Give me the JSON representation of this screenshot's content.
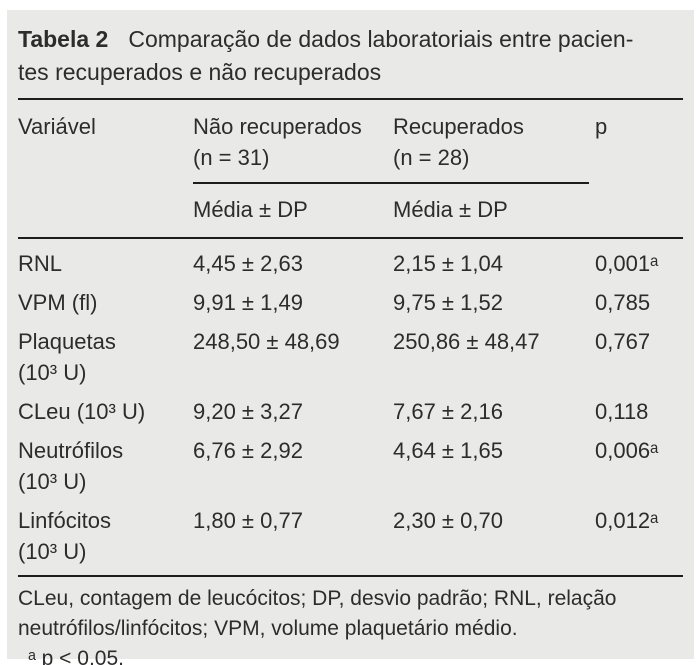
{
  "title": {
    "label": "Tabela 2",
    "line1": "Comparação de dados laboratoriais entre pacien-",
    "line2": "tes recuperados e não recuperados"
  },
  "table": {
    "columns": {
      "variable": "Variável",
      "group1_line1": "Não recuperados",
      "group1_line2": "(n = 31)",
      "group2_line1": "Recuperados",
      "group2_line2": "(n = 28)",
      "p": "p",
      "subheader": "Média ± DP"
    },
    "rows": [
      {
        "variable": "RNL",
        "unit": "",
        "not_recovered": "4,45 ± 2,63",
        "recovered": "2,15 ± 1,04",
        "p": "0,001ᵃ"
      },
      {
        "variable": "VPM (fl)",
        "unit": "",
        "not_recovered": "9,91 ± 1,49",
        "recovered": "9,75 ± 1,52",
        "p": "0,785"
      },
      {
        "variable": "Plaquetas",
        "unit": "(10³ U)",
        "not_recovered": "248,50 ± 48,69",
        "recovered": "250,86 ± 48,47",
        "p": "0,767"
      },
      {
        "variable": "CLeu (10³ U)",
        "unit": "",
        "not_recovered": "9,20 ± 3,27",
        "recovered": "7,67 ± 2,16",
        "p": "0,118"
      },
      {
        "variable": "Neutrófilos",
        "unit": "(10³ U)",
        "not_recovered": "6,76 ± 2,92",
        "recovered": "4,64 ± 1,65",
        "p": "0,006ᵃ"
      },
      {
        "variable": "Linfócitos",
        "unit": "(10³ U)",
        "not_recovered": "1,80 ± 0,77",
        "recovered": "2,30 ± 0,70",
        "p": "0,012ᵃ"
      }
    ]
  },
  "footnotes": {
    "abbreviations": "CLeu, contagem de leucócitos; DP, desvio padrão; RNL, relação neutrófilos/linfócitos; VPM, volume plaquetário médio.",
    "significance": "ᵃ p < 0,05."
  },
  "colors": {
    "panel_background": "#e9e9e7",
    "text": "#2c2c2c",
    "rule": "#1d1d1d"
  }
}
